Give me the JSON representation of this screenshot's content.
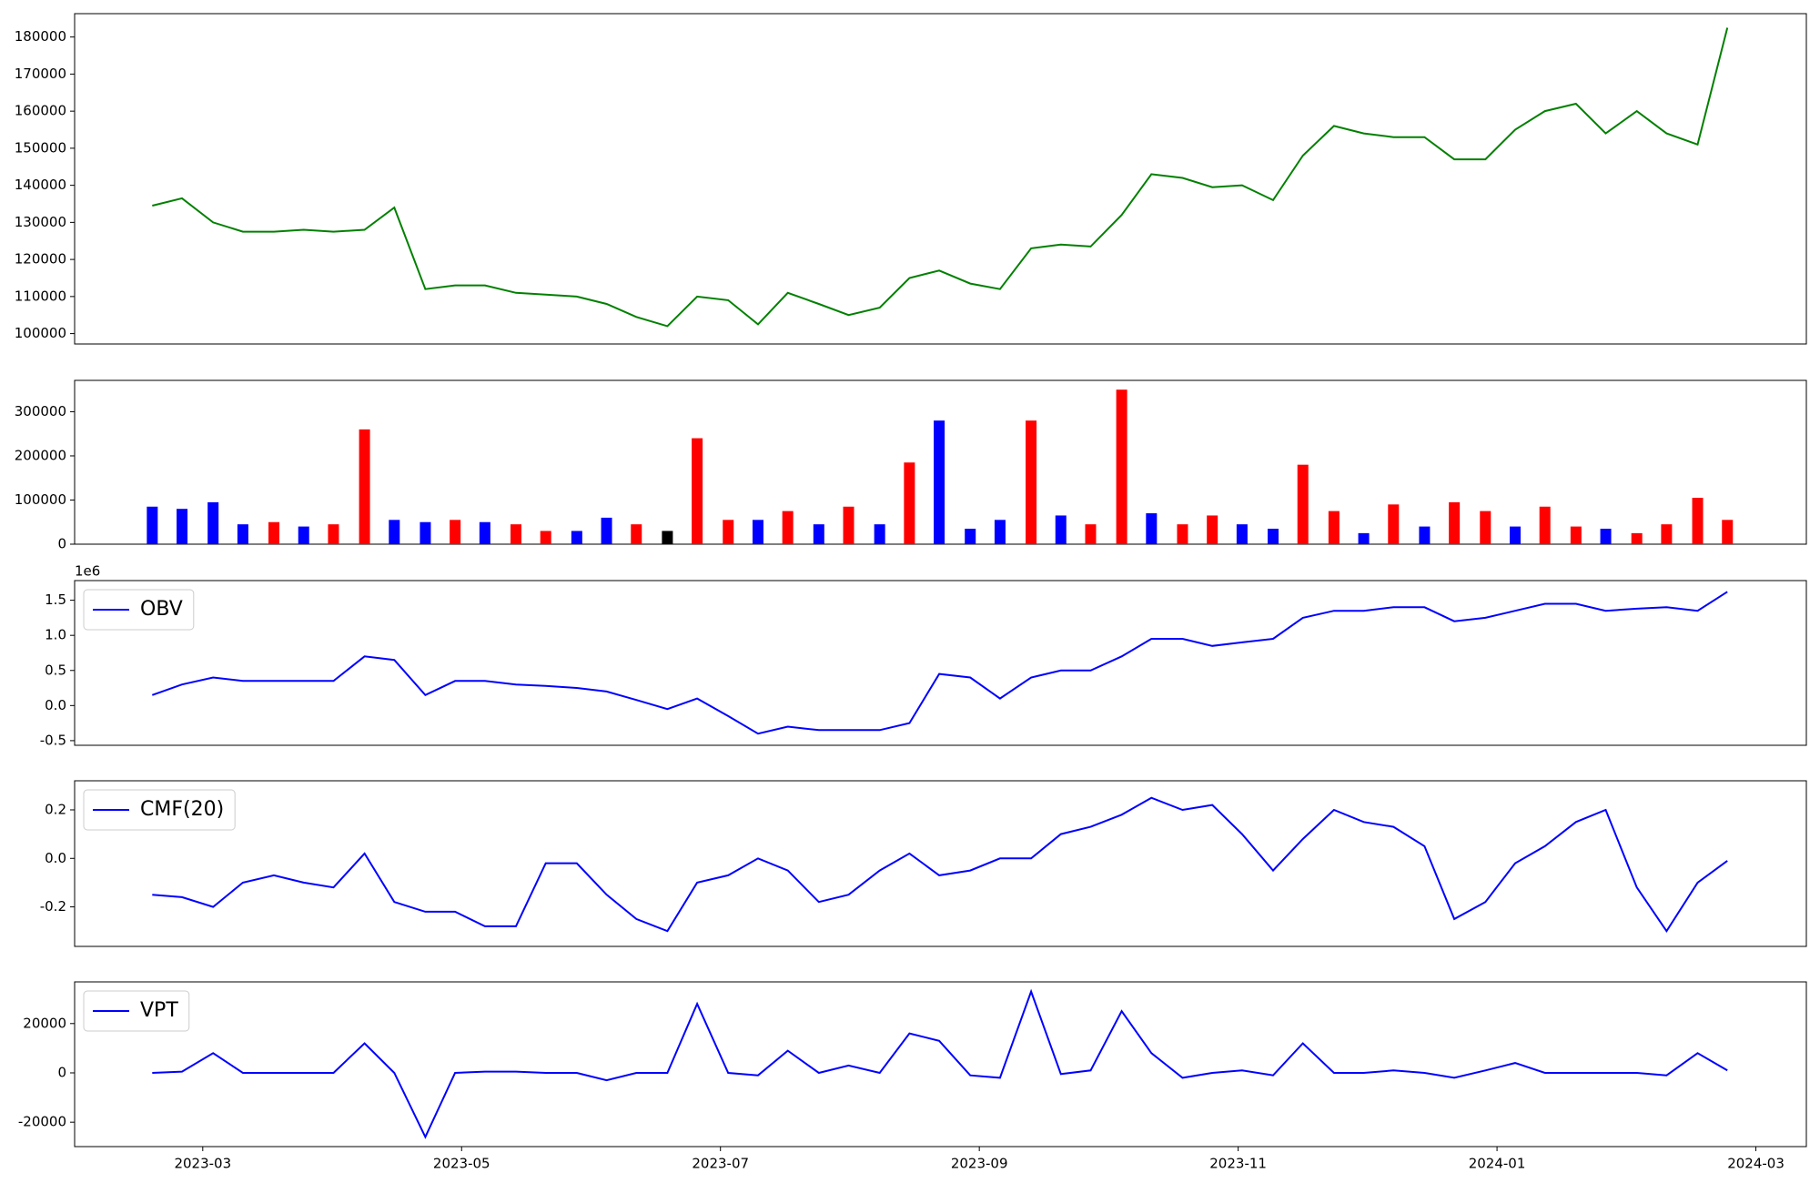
{
  "chart_data": [
    {
      "type": "line",
      "x": [
        2.61,
        2.84,
        3.08,
        3.31,
        3.55,
        3.78,
        4.01,
        4.25,
        4.48,
        4.72,
        4.95,
        5.18,
        5.42,
        5.65,
        5.89,
        6.12,
        6.35,
        6.59,
        6.82,
        7.06,
        7.29,
        7.52,
        7.76,
        7.99,
        8.23,
        8.46,
        8.69,
        8.93,
        9.16,
        9.4,
        9.63,
        9.86,
        10.1,
        10.33,
        10.57,
        10.8,
        11.03,
        11.27,
        11.5,
        11.74,
        11.97,
        12.2,
        12.44,
        12.67,
        12.91,
        13.14,
        13.37,
        13.61,
        13.84,
        14.08,
        14.31,
        14.55,
        14.78
      ],
      "xlim": [
        2.01,
        15.39
      ],
      "ylim": [
        97200,
        186300
      ],
      "yticks": [
        100000,
        110000,
        120000,
        130000,
        140000,
        150000,
        160000,
        170000,
        180000
      ],
      "series": [
        {
          "color": "green",
          "values": [
            134500,
            136500,
            130000,
            127500,
            127500,
            128000,
            127500,
            128000,
            134000,
            112000,
            113000,
            113000,
            111000,
            110500,
            110000,
            108000,
            104500,
            102000,
            110000,
            109000,
            102500,
            111000,
            108000,
            105000,
            107000,
            115000,
            117000,
            113500,
            112000,
            123000,
            124000,
            123500,
            132000,
            143000,
            142000,
            139500,
            140000,
            136000,
            148000,
            156000,
            154000,
            153000,
            153000,
            147000,
            147000,
            155000,
            160000,
            162000,
            154000,
            160000,
            154000,
            151000,
            182500
          ]
        }
      ]
    },
    {
      "type": "bar",
      "ylim": [
        0,
        371000
      ],
      "yticks": [
        0,
        100000,
        200000,
        300000
      ],
      "values": [
        85000,
        80000,
        95000,
        45000,
        50000,
        40000,
        45000,
        260000,
        55000,
        50000,
        55000,
        50000,
        45000,
        30000,
        30000,
        60000,
        45000,
        30000,
        240000,
        55000,
        55000,
        75000,
        45000,
        85000,
        45000,
        185000,
        280000,
        35000,
        55000,
        280000,
        65000,
        45000,
        350000,
        70000,
        45000,
        65000,
        45000,
        35000,
        180000,
        75000,
        25000,
        90000,
        40000,
        95000,
        75000,
        40000,
        85000,
        40000,
        35000,
        25000,
        45000,
        105000,
        55000
      ],
      "colors": [
        "blue",
        "blue",
        "blue",
        "blue",
        "red",
        "blue",
        "red",
        "red",
        "blue",
        "blue",
        "red",
        "blue",
        "red",
        "red",
        "blue",
        "blue",
        "red",
        "black",
        "red",
        "red",
        "blue",
        "red",
        "blue",
        "red",
        "blue",
        "red",
        "blue",
        "blue",
        "blue",
        "red",
        "blue",
        "red",
        "red",
        "blue",
        "red",
        "red",
        "blue",
        "blue",
        "red",
        "red",
        "blue",
        "red",
        "blue",
        "red",
        "red",
        "blue",
        "red",
        "red",
        "blue",
        "red",
        "red",
        "red",
        "red"
      ]
    },
    {
      "type": "line",
      "ylim": [
        -0.566,
        1.78
      ],
      "yticks": [
        -0.5,
        {
          "value": 0,
          "label": "0.0"
        },
        0.5,
        {
          "value": 1,
          "label": "1.0"
        },
        1.5
      ],
      "offset_label": "1e6",
      "legend": "upper left",
      "series": [
        {
          "name": "OBV",
          "color": "blue",
          "values": [
            0.15,
            0.3,
            0.4,
            0.35,
            0.35,
            0.35,
            0.35,
            0.7,
            0.65,
            0.15,
            0.35,
            0.35,
            0.3,
            0.28,
            0.25,
            0.2,
            0.08,
            -0.05,
            0.1,
            -0.15,
            -0.4,
            -0.3,
            -0.35,
            -0.35,
            -0.35,
            -0.25,
            0.45,
            0.4,
            0.1,
            0.4,
            0.5,
            0.5,
            0.7,
            0.95,
            0.95,
            0.85,
            0.9,
            0.95,
            1.25,
            1.35,
            1.35,
            1.4,
            1.4,
            1.2,
            1.25,
            1.35,
            1.45,
            1.45,
            1.35,
            1.38,
            1.4,
            1.35,
            1.62
          ]
        }
      ]
    },
    {
      "type": "line",
      "ylim": [
        -0.363,
        0.32
      ],
      "yticks": [
        -0.2,
        {
          "value": 0,
          "label": "0.0"
        },
        0.2
      ],
      "legend": "upper left",
      "series": [
        {
          "name": "CMF(20)",
          "color": "blue",
          "values": [
            -0.15,
            -0.16,
            -0.2,
            -0.1,
            -0.07,
            -0.1,
            -0.12,
            0.02,
            -0.18,
            -0.22,
            -0.22,
            -0.28,
            -0.28,
            -0.02,
            -0.02,
            -0.15,
            -0.25,
            -0.3,
            -0.1,
            -0.07,
            0,
            -0.05,
            -0.18,
            -0.15,
            -0.05,
            0.02,
            -0.07,
            -0.05,
            0,
            0,
            0.1,
            0.13,
            0.18,
            0.25,
            0.2,
            0.22,
            0.1,
            -0.05,
            0.08,
            0.2,
            0.15,
            0.13,
            0.05,
            -0.25,
            -0.18,
            -0.02,
            0.05,
            0.15,
            0.2,
            -0.12,
            -0.3,
            -0.1,
            -0.01
          ]
        }
      ]
    },
    {
      "type": "line",
      "ylim": [
        -29900,
        36900
      ],
      "yticks": [
        -20000,
        0,
        20000
      ],
      "xticks": [
        {
          "value": 3,
          "label": "2023-03"
        },
        {
          "value": 5,
          "label": "2023-05"
        },
        {
          "value": 7,
          "label": "2023-07"
        },
        {
          "value": 9,
          "label": "2023-09"
        },
        {
          "value": 11,
          "label": "2023-11"
        },
        {
          "value": 13,
          "label": "2024-01"
        },
        {
          "value": 15,
          "label": "2024-03"
        }
      ],
      "legend": "upper left",
      "series": [
        {
          "name": "VPT",
          "color": "blue",
          "values": [
            0,
            500,
            8000,
            0,
            0,
            0,
            0,
            12000,
            0,
            -26000,
            0,
            500,
            500,
            0,
            0,
            -3000,
            0,
            0,
            28000,
            0,
            -1000,
            9000,
            0,
            3000,
            0,
            16000,
            13000,
            -1000,
            -2000,
            33000,
            -500,
            1000,
            25000,
            8000,
            -2000,
            0,
            1000,
            -1000,
            12000,
            0,
            0,
            1000,
            0,
            -2000,
            1000,
            4000,
            0,
            0,
            0,
            0,
            -1000,
            8000,
            1000
          ]
        }
      ]
    }
  ]
}
